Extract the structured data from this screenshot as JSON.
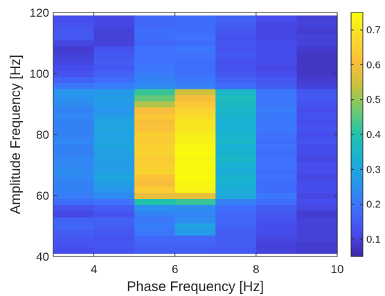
{
  "chart_data": {
    "type": "heatmap",
    "title": "",
    "xlabel": "Phase Frequency [Hz]",
    "ylabel": "Amplitude Frequency [Hz]",
    "xlim": [
      3,
      10
    ],
    "ylim": [
      40,
      120
    ],
    "x_ticks": [
      "4",
      "6",
      "8",
      "10"
    ],
    "y_ticks": [
      "40",
      "60",
      "80",
      "100",
      "120"
    ],
    "colorbar": {
      "colormap": "parula",
      "range": [
        0.05,
        0.75
      ],
      "ticks": [
        "0.1",
        "0.2",
        "0.3",
        "0.4",
        "0.5",
        "0.6",
        "0.7"
      ]
    },
    "x_centers": [
      3.5,
      4.5,
      5.5,
      6.5,
      7.5,
      8.5,
      9.5
    ],
    "y_centers": [
      42,
      44,
      46,
      48,
      50,
      52,
      54,
      56,
      58,
      60,
      62,
      64,
      66,
      68,
      70,
      72,
      74,
      76,
      78,
      80,
      82,
      84,
      86,
      88,
      90,
      92,
      94,
      96,
      98,
      100,
      102,
      104,
      106,
      108,
      110,
      112,
      114,
      116,
      118
    ],
    "values": [
      [
        0.12,
        0.13,
        0.15,
        0.15,
        0.14,
        0.1,
        0.09
      ],
      [
        0.13,
        0.14,
        0.16,
        0.16,
        0.15,
        0.1,
        0.09
      ],
      [
        0.14,
        0.13,
        0.17,
        0.17,
        0.15,
        0.11,
        0.1
      ],
      [
        0.15,
        0.14,
        0.2,
        0.27,
        0.15,
        0.12,
        0.1
      ],
      [
        0.17,
        0.15,
        0.21,
        0.29,
        0.16,
        0.12,
        0.1
      ],
      [
        0.16,
        0.16,
        0.2,
        0.24,
        0.17,
        0.13,
        0.1
      ],
      [
        0.11,
        0.13,
        0.22,
        0.23,
        0.17,
        0.14,
        0.09
      ],
      [
        0.13,
        0.15,
        0.25,
        0.24,
        0.18,
        0.15,
        0.11
      ],
      [
        0.18,
        0.19,
        0.4,
        0.42,
        0.22,
        0.18,
        0.12
      ],
      [
        0.21,
        0.24,
        0.58,
        0.58,
        0.31,
        0.2,
        0.11
      ],
      [
        0.22,
        0.26,
        0.64,
        0.73,
        0.32,
        0.18,
        0.12
      ],
      [
        0.22,
        0.28,
        0.6,
        0.74,
        0.33,
        0.18,
        0.12
      ],
      [
        0.23,
        0.3,
        0.62,
        0.75,
        0.34,
        0.19,
        0.11
      ],
      [
        0.24,
        0.28,
        0.66,
        0.74,
        0.32,
        0.18,
        0.12
      ],
      [
        0.23,
        0.27,
        0.65,
        0.75,
        0.33,
        0.19,
        0.12
      ],
      [
        0.23,
        0.28,
        0.64,
        0.74,
        0.35,
        0.19,
        0.11
      ],
      [
        0.22,
        0.28,
        0.66,
        0.75,
        0.34,
        0.18,
        0.12
      ],
      [
        0.22,
        0.3,
        0.65,
        0.74,
        0.33,
        0.19,
        0.12
      ],
      [
        0.23,
        0.29,
        0.64,
        0.73,
        0.35,
        0.18,
        0.13
      ],
      [
        0.22,
        0.29,
        0.65,
        0.72,
        0.34,
        0.19,
        0.12
      ],
      [
        0.22,
        0.3,
        0.62,
        0.7,
        0.33,
        0.2,
        0.13
      ],
      [
        0.22,
        0.29,
        0.6,
        0.7,
        0.33,
        0.2,
        0.12
      ],
      [
        0.23,
        0.28,
        0.63,
        0.68,
        0.34,
        0.2,
        0.13
      ],
      [
        0.22,
        0.26,
        0.6,
        0.66,
        0.35,
        0.21,
        0.12
      ],
      [
        0.24,
        0.27,
        0.52,
        0.63,
        0.36,
        0.2,
        0.13
      ],
      [
        0.25,
        0.28,
        0.46,
        0.6,
        0.37,
        0.2,
        0.14
      ],
      [
        0.26,
        0.27,
        0.42,
        0.55,
        0.35,
        0.2,
        0.14
      ],
      [
        0.2,
        0.21,
        0.24,
        0.22,
        0.18,
        0.15,
        0.1
      ],
      [
        0.16,
        0.18,
        0.22,
        0.2,
        0.16,
        0.14,
        0.09
      ],
      [
        0.13,
        0.16,
        0.21,
        0.19,
        0.14,
        0.12,
        0.08
      ],
      [
        0.12,
        0.14,
        0.2,
        0.18,
        0.13,
        0.11,
        0.08
      ],
      [
        0.11,
        0.15,
        0.19,
        0.18,
        0.13,
        0.12,
        0.08
      ],
      [
        0.1,
        0.14,
        0.19,
        0.19,
        0.14,
        0.12,
        0.08
      ],
      [
        0.09,
        0.13,
        0.19,
        0.2,
        0.13,
        0.12,
        0.09
      ],
      [
        0.11,
        0.1,
        0.17,
        0.18,
        0.14,
        0.12,
        0.1
      ],
      [
        0.14,
        0.1,
        0.18,
        0.19,
        0.13,
        0.11,
        0.1
      ],
      [
        0.14,
        0.1,
        0.18,
        0.18,
        0.14,
        0.11,
        0.09
      ],
      [
        0.13,
        0.11,
        0.17,
        0.18,
        0.15,
        0.11,
        0.1
      ],
      [
        0.12,
        0.11,
        0.17,
        0.18,
        0.16,
        0.12,
        0.1
      ]
    ]
  }
}
